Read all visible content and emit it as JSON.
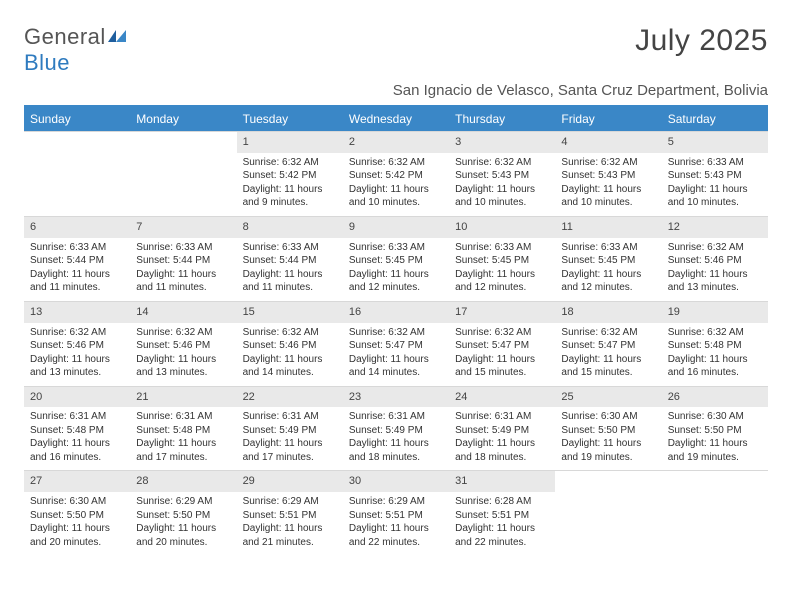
{
  "logo": {
    "text1": "General",
    "text2": "Blue"
  },
  "title": "July 2025",
  "location": "San Ignacio de Velasco, Santa Cruz Department, Bolivia",
  "colors": {
    "header_bg": "#3a87c7",
    "header_text": "#ffffff",
    "daynum_bg": "#e9e9e9",
    "text": "#333333",
    "accent": "#2f7bbf"
  },
  "fonts": {
    "title_size": 30,
    "location_size": 15,
    "th_size": 12,
    "cell_size": 10
  },
  "weekdays": [
    "Sunday",
    "Monday",
    "Tuesday",
    "Wednesday",
    "Thursday",
    "Friday",
    "Saturday"
  ],
  "calendar": {
    "type": "table",
    "columns": 7,
    "weeks": [
      {
        "nums": [
          "",
          "",
          "1",
          "2",
          "3",
          "4",
          "5"
        ],
        "cells": [
          null,
          null,
          {
            "sunrise": "Sunrise: 6:32 AM",
            "sunset": "Sunset: 5:42 PM",
            "day1": "Daylight: 11 hours",
            "day2": "and 9 minutes."
          },
          {
            "sunrise": "Sunrise: 6:32 AM",
            "sunset": "Sunset: 5:42 PM",
            "day1": "Daylight: 11 hours",
            "day2": "and 10 minutes."
          },
          {
            "sunrise": "Sunrise: 6:32 AM",
            "sunset": "Sunset: 5:43 PM",
            "day1": "Daylight: 11 hours",
            "day2": "and 10 minutes."
          },
          {
            "sunrise": "Sunrise: 6:32 AM",
            "sunset": "Sunset: 5:43 PM",
            "day1": "Daylight: 11 hours",
            "day2": "and 10 minutes."
          },
          {
            "sunrise": "Sunrise: 6:33 AM",
            "sunset": "Sunset: 5:43 PM",
            "day1": "Daylight: 11 hours",
            "day2": "and 10 minutes."
          }
        ]
      },
      {
        "nums": [
          "6",
          "7",
          "8",
          "9",
          "10",
          "11",
          "12"
        ],
        "cells": [
          {
            "sunrise": "Sunrise: 6:33 AM",
            "sunset": "Sunset: 5:44 PM",
            "day1": "Daylight: 11 hours",
            "day2": "and 11 minutes."
          },
          {
            "sunrise": "Sunrise: 6:33 AM",
            "sunset": "Sunset: 5:44 PM",
            "day1": "Daylight: 11 hours",
            "day2": "and 11 minutes."
          },
          {
            "sunrise": "Sunrise: 6:33 AM",
            "sunset": "Sunset: 5:44 PM",
            "day1": "Daylight: 11 hours",
            "day2": "and 11 minutes."
          },
          {
            "sunrise": "Sunrise: 6:33 AM",
            "sunset": "Sunset: 5:45 PM",
            "day1": "Daylight: 11 hours",
            "day2": "and 12 minutes."
          },
          {
            "sunrise": "Sunrise: 6:33 AM",
            "sunset": "Sunset: 5:45 PM",
            "day1": "Daylight: 11 hours",
            "day2": "and 12 minutes."
          },
          {
            "sunrise": "Sunrise: 6:33 AM",
            "sunset": "Sunset: 5:45 PM",
            "day1": "Daylight: 11 hours",
            "day2": "and 12 minutes."
          },
          {
            "sunrise": "Sunrise: 6:32 AM",
            "sunset": "Sunset: 5:46 PM",
            "day1": "Daylight: 11 hours",
            "day2": "and 13 minutes."
          }
        ]
      },
      {
        "nums": [
          "13",
          "14",
          "15",
          "16",
          "17",
          "18",
          "19"
        ],
        "cells": [
          {
            "sunrise": "Sunrise: 6:32 AM",
            "sunset": "Sunset: 5:46 PM",
            "day1": "Daylight: 11 hours",
            "day2": "and 13 minutes."
          },
          {
            "sunrise": "Sunrise: 6:32 AM",
            "sunset": "Sunset: 5:46 PM",
            "day1": "Daylight: 11 hours",
            "day2": "and 13 minutes."
          },
          {
            "sunrise": "Sunrise: 6:32 AM",
            "sunset": "Sunset: 5:46 PM",
            "day1": "Daylight: 11 hours",
            "day2": "and 14 minutes."
          },
          {
            "sunrise": "Sunrise: 6:32 AM",
            "sunset": "Sunset: 5:47 PM",
            "day1": "Daylight: 11 hours",
            "day2": "and 14 minutes."
          },
          {
            "sunrise": "Sunrise: 6:32 AM",
            "sunset": "Sunset: 5:47 PM",
            "day1": "Daylight: 11 hours",
            "day2": "and 15 minutes."
          },
          {
            "sunrise": "Sunrise: 6:32 AM",
            "sunset": "Sunset: 5:47 PM",
            "day1": "Daylight: 11 hours",
            "day2": "and 15 minutes."
          },
          {
            "sunrise": "Sunrise: 6:32 AM",
            "sunset": "Sunset: 5:48 PM",
            "day1": "Daylight: 11 hours",
            "day2": "and 16 minutes."
          }
        ]
      },
      {
        "nums": [
          "20",
          "21",
          "22",
          "23",
          "24",
          "25",
          "26"
        ],
        "cells": [
          {
            "sunrise": "Sunrise: 6:31 AM",
            "sunset": "Sunset: 5:48 PM",
            "day1": "Daylight: 11 hours",
            "day2": "and 16 minutes."
          },
          {
            "sunrise": "Sunrise: 6:31 AM",
            "sunset": "Sunset: 5:48 PM",
            "day1": "Daylight: 11 hours",
            "day2": "and 17 minutes."
          },
          {
            "sunrise": "Sunrise: 6:31 AM",
            "sunset": "Sunset: 5:49 PM",
            "day1": "Daylight: 11 hours",
            "day2": "and 17 minutes."
          },
          {
            "sunrise": "Sunrise: 6:31 AM",
            "sunset": "Sunset: 5:49 PM",
            "day1": "Daylight: 11 hours",
            "day2": "and 18 minutes."
          },
          {
            "sunrise": "Sunrise: 6:31 AM",
            "sunset": "Sunset: 5:49 PM",
            "day1": "Daylight: 11 hours",
            "day2": "and 18 minutes."
          },
          {
            "sunrise": "Sunrise: 6:30 AM",
            "sunset": "Sunset: 5:50 PM",
            "day1": "Daylight: 11 hours",
            "day2": "and 19 minutes."
          },
          {
            "sunrise": "Sunrise: 6:30 AM",
            "sunset": "Sunset: 5:50 PM",
            "day1": "Daylight: 11 hours",
            "day2": "and 19 minutes."
          }
        ]
      },
      {
        "nums": [
          "27",
          "28",
          "29",
          "30",
          "31",
          "",
          ""
        ],
        "cells": [
          {
            "sunrise": "Sunrise: 6:30 AM",
            "sunset": "Sunset: 5:50 PM",
            "day1": "Daylight: 11 hours",
            "day2": "and 20 minutes."
          },
          {
            "sunrise": "Sunrise: 6:29 AM",
            "sunset": "Sunset: 5:50 PM",
            "day1": "Daylight: 11 hours",
            "day2": "and 20 minutes."
          },
          {
            "sunrise": "Sunrise: 6:29 AM",
            "sunset": "Sunset: 5:51 PM",
            "day1": "Daylight: 11 hours",
            "day2": "and 21 minutes."
          },
          {
            "sunrise": "Sunrise: 6:29 AM",
            "sunset": "Sunset: 5:51 PM",
            "day1": "Daylight: 11 hours",
            "day2": "and 22 minutes."
          },
          {
            "sunrise": "Sunrise: 6:28 AM",
            "sunset": "Sunset: 5:51 PM",
            "day1": "Daylight: 11 hours",
            "day2": "and 22 minutes."
          },
          null,
          null
        ]
      }
    ]
  }
}
